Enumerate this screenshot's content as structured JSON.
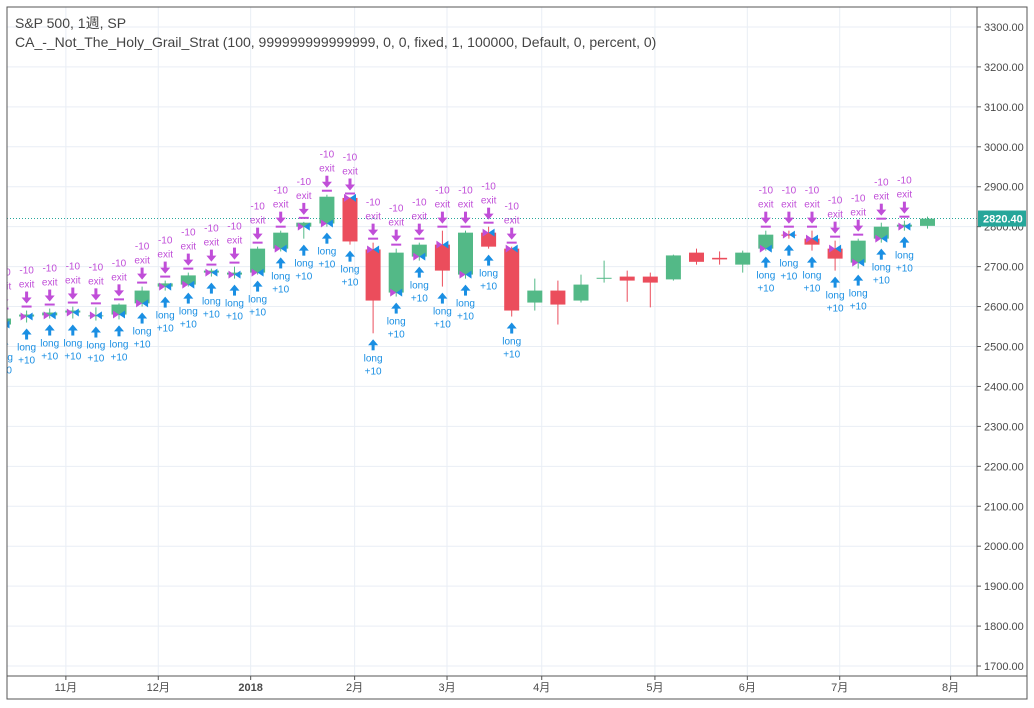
{
  "header": {
    "symbol_line": "S&P 500, 1週, SP",
    "strategy_line": "CA_-_Not_The_Holy_Grail_Strat (100, 999999999999999, 0, 0, fixed, 1, 100000, Default, 0, percent, 0)"
  },
  "colors": {
    "up": "#53b987",
    "down": "#eb4d5c",
    "exit": "#c04ed8",
    "long": "#1a8fe3",
    "grid": "#e9eef5",
    "price_line": "#26a69a"
  },
  "chart_data": {
    "type": "candlestick",
    "title": "S&P 500, 1週, SP",
    "ylim": [
      1675,
      3350
    ],
    "y_ticks": [
      3300,
      3200,
      3100,
      3000,
      2900,
      2800,
      2700,
      2600,
      2500,
      2400,
      2300,
      2200,
      2100,
      2000,
      1900,
      1800,
      1700
    ],
    "y_tick_labels": [
      "3300.00",
      "3200.00",
      "3100.00",
      "3000.00",
      "2900.00",
      "2800.00",
      "2700.00",
      "2600.00",
      "2500.00",
      "2400.00",
      "2300.00",
      "2200.00",
      "2100.00",
      "2000.00",
      "1900.00",
      "1800.00",
      "1700.00"
    ],
    "x_ticks": [
      {
        "bar": 2.7,
        "label": "11月",
        "bold": false
      },
      {
        "bar": 6.7,
        "label": "12月",
        "bold": false
      },
      {
        "bar": 10.7,
        "label": "2018",
        "bold": true
      },
      {
        "bar": 15.2,
        "label": "2月",
        "bold": false
      },
      {
        "bar": 19.2,
        "label": "3月",
        "bold": false
      },
      {
        "bar": 23.3,
        "label": "4月",
        "bold": false
      },
      {
        "bar": 28.2,
        "label": "5月",
        "bold": false
      },
      {
        "bar": 32.2,
        "label": "6月",
        "bold": false
      },
      {
        "bar": 36.2,
        "label": "7月",
        "bold": false
      },
      {
        "bar": 41.0,
        "label": "8月",
        "bold": false
      }
    ],
    "current_price": 2820.4,
    "current_price_label": "2820.40",
    "candles": [
      {
        "o": 2555,
        "h": 2585,
        "l": 2535,
        "c": 2570
      },
      {
        "o": 2575,
        "h": 2590,
        "l": 2560,
        "c": 2580
      },
      {
        "o": 2578,
        "h": 2595,
        "l": 2570,
        "c": 2585
      },
      {
        "o": 2585,
        "h": 2600,
        "l": 2570,
        "c": 2590
      },
      {
        "o": 2578,
        "h": 2598,
        "l": 2565,
        "c": 2578
      },
      {
        "o": 2580,
        "h": 2608,
        "l": 2568,
        "c": 2605
      },
      {
        "o": 2608,
        "h": 2650,
        "l": 2600,
        "c": 2640
      },
      {
        "o": 2650,
        "h": 2665,
        "l": 2640,
        "c": 2658
      },
      {
        "o": 2655,
        "h": 2685,
        "l": 2650,
        "c": 2678
      },
      {
        "o": 2685,
        "h": 2695,
        "l": 2675,
        "c": 2690
      },
      {
        "o": 2680,
        "h": 2700,
        "l": 2670,
        "c": 2685
      },
      {
        "o": 2685,
        "h": 2750,
        "l": 2680,
        "c": 2745
      },
      {
        "o": 2745,
        "h": 2790,
        "l": 2738,
        "c": 2785
      },
      {
        "o": 2800,
        "h": 2812,
        "l": 2770,
        "c": 2810
      },
      {
        "o": 2808,
        "h": 2880,
        "l": 2800,
        "c": 2875
      },
      {
        "o": 2872,
        "h": 2873,
        "l": 2755,
        "c": 2763
      },
      {
        "o": 2743,
        "h": 2760,
        "l": 2533,
        "c": 2615
      },
      {
        "o": 2635,
        "h": 2745,
        "l": 2625,
        "c": 2735
      },
      {
        "o": 2725,
        "h": 2760,
        "l": 2715,
        "c": 2755
      },
      {
        "o": 2755,
        "h": 2790,
        "l": 2650,
        "c": 2690
      },
      {
        "o": 2680,
        "h": 2790,
        "l": 2670,
        "c": 2785
      },
      {
        "o": 2785,
        "h": 2800,
        "l": 2745,
        "c": 2750
      },
      {
        "o": 2745,
        "h": 2750,
        "l": 2575,
        "c": 2590
      },
      {
        "o": 2610,
        "h": 2670,
        "l": 2590,
        "c": 2640
      },
      {
        "o": 2640,
        "h": 2665,
        "l": 2555,
        "c": 2605
      },
      {
        "o": 2615,
        "h": 2680,
        "l": 2610,
        "c": 2655
      },
      {
        "o": 2670,
        "h": 2715,
        "l": 2660,
        "c": 2672
      },
      {
        "o": 2675,
        "h": 2690,
        "l": 2612,
        "c": 2665
      },
      {
        "o": 2675,
        "h": 2685,
        "l": 2598,
        "c": 2660
      },
      {
        "o": 2668,
        "h": 2730,
        "l": 2665,
        "c": 2728
      },
      {
        "o": 2735,
        "h": 2745,
        "l": 2705,
        "c": 2712
      },
      {
        "o": 2722,
        "h": 2738,
        "l": 2705,
        "c": 2718
      },
      {
        "o": 2705,
        "h": 2740,
        "l": 2685,
        "c": 2735
      },
      {
        "o": 2745,
        "h": 2790,
        "l": 2740,
        "c": 2780
      },
      {
        "o": 2780,
        "h": 2790,
        "l": 2770,
        "c": 2778
      },
      {
        "o": 2770,
        "h": 2790,
        "l": 2740,
        "c": 2755
      },
      {
        "o": 2745,
        "h": 2765,
        "l": 2690,
        "c": 2720
      },
      {
        "o": 2710,
        "h": 2770,
        "l": 2695,
        "c": 2765
      },
      {
        "o": 2770,
        "h": 2810,
        "l": 2760,
        "c": 2800
      },
      {
        "o": 2800,
        "h": 2815,
        "l": 2790,
        "c": 2805
      },
      {
        "o": 2802,
        "h": 2825,
        "l": 2795,
        "c": 2820
      }
    ],
    "trade_bars": [
      0,
      1,
      2,
      3,
      4,
      5,
      6,
      7,
      8,
      9,
      10,
      11,
      12,
      13,
      14,
      15,
      16,
      17,
      18,
      19,
      20,
      21,
      22,
      33,
      34,
      35,
      36,
      37,
      38,
      39
    ],
    "exit_signal": {
      "text": "exit",
      "qty": "-10"
    },
    "long_signal": {
      "text": "long",
      "qty": "+10"
    }
  }
}
